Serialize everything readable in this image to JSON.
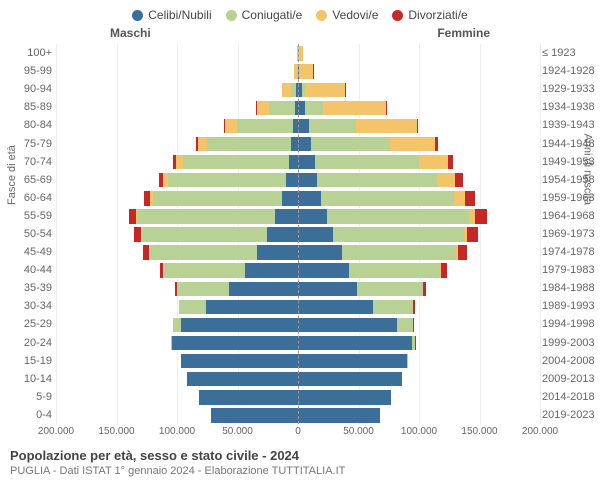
{
  "legend": [
    {
      "label": "Celibi/Nubili",
      "color": "#3b6e99"
    },
    {
      "label": "Coniugati/e",
      "color": "#b8d194"
    },
    {
      "label": "Vedovi/e",
      "color": "#f4c46a"
    },
    {
      "label": "Divorziati/e",
      "color": "#c62828"
    }
  ],
  "side_titles": {
    "left": "Maschi",
    "right": "Femmine"
  },
  "axis_titles": {
    "left": "Fasce di età",
    "right": "Anni di nascita"
  },
  "x_axis": {
    "max": 200000,
    "ticks": [
      200000,
      150000,
      100000,
      50000,
      0,
      50000,
      100000,
      150000,
      200000
    ],
    "tick_labels": [
      "200.000",
      "150.000",
      "100.000",
      "50.000",
      "0",
      "50.000",
      "100.000",
      "150.000",
      "200.000"
    ]
  },
  "colors": {
    "celibi": "#3b6e99",
    "coniugati": "#b8d194",
    "vedovi": "#f4c46a",
    "divorziati": "#c62828",
    "grid": "#eeeeee",
    "center": "#999999",
    "bg": "#ffffff"
  },
  "caption": {
    "title": "Popolazione per età, sesso e stato civile - 2024",
    "sub": "PUGLIA - Dati ISTAT 1° gennaio 2024 - Elaborazione TUTTITALIA.IT"
  },
  "rows": [
    {
      "age": "100+",
      "years": "≤ 1923",
      "m": [
        100,
        100,
        700,
        0
      ],
      "f": [
        300,
        200,
        3500,
        0
      ]
    },
    {
      "age": "95-99",
      "years": "1924-1928",
      "m": [
        400,
        600,
        2500,
        100
      ],
      "f": [
        800,
        500,
        11000,
        100
      ]
    },
    {
      "age": "90-94",
      "years": "1929-1933",
      "m": [
        1500,
        4500,
        7000,
        300
      ],
      "f": [
        3200,
        2600,
        33000,
        400
      ]
    },
    {
      "age": "85-89",
      "years": "1934-1938",
      "m": [
        2800,
        21000,
        10000,
        600
      ],
      "f": [
        6000,
        15000,
        52000,
        900
      ]
    },
    {
      "age": "80-84",
      "years": "1939-1943",
      "m": [
        4200,
        46000,
        10000,
        1100
      ],
      "f": [
        9000,
        39000,
        50000,
        1600
      ]
    },
    {
      "age": "75-79",
      "years": "1944-1948",
      "m": [
        5500,
        70000,
        7500,
        1700
      ],
      "f": [
        11000,
        65000,
        37000,
        2600
      ]
    },
    {
      "age": "70-74",
      "years": "1949-1953",
      "m": [
        7200,
        88000,
        5500,
        2700
      ],
      "f": [
        14000,
        86000,
        24000,
        4200
      ]
    },
    {
      "age": "65-69",
      "years": "1954-1958",
      "m": [
        9500,
        98000,
        3800,
        4000
      ],
      "f": [
        16000,
        99000,
        15000,
        6000
      ]
    },
    {
      "age": "60-64",
      "years": "1959-1963",
      "m": [
        13000,
        107000,
        2500,
        5000
      ],
      "f": [
        19000,
        110000,
        9000,
        8000
      ]
    },
    {
      "age": "55-59",
      "years": "1964-1968",
      "m": [
        19000,
        113000,
        1600,
        6000
      ],
      "f": [
        24000,
        117000,
        5500,
        9500
      ]
    },
    {
      "age": "50-54",
      "years": "1969-1973",
      "m": [
        26000,
        103000,
        900,
        5500
      ],
      "f": [
        29000,
        108000,
        3000,
        9000
      ]
    },
    {
      "age": "45-49",
      "years": "1974-1978",
      "m": [
        34000,
        89000,
        500,
        4500
      ],
      "f": [
        36000,
        95000,
        1600,
        7500
      ]
    },
    {
      "age": "40-44",
      "years": "1979-1983",
      "m": [
        44000,
        67000,
        250,
        3000
      ],
      "f": [
        42000,
        75000,
        800,
        5000
      ]
    },
    {
      "age": "35-39",
      "years": "1984-1988",
      "m": [
        57000,
        43000,
        100,
        1500
      ],
      "f": [
        49000,
        54000,
        350,
        2700
      ]
    },
    {
      "age": "30-34",
      "years": "1989-1993",
      "m": [
        76000,
        22000,
        50,
        600
      ],
      "f": [
        62000,
        33000,
        150,
        1200
      ]
    },
    {
      "age": "25-29",
      "years": "1994-1998",
      "m": [
        97000,
        6500,
        20,
        150
      ],
      "f": [
        82000,
        13000,
        60,
        350
      ]
    },
    {
      "age": "20-24",
      "years": "1999-2003",
      "m": [
        104000,
        900,
        5,
        30
      ],
      "f": [
        94000,
        2800,
        20,
        80
      ]
    },
    {
      "age": "15-19",
      "years": "2004-2008",
      "m": [
        97000,
        40,
        0,
        5
      ],
      "f": [
        90000,
        250,
        5,
        10
      ]
    },
    {
      "age": "10-14",
      "years": "2009-2013",
      "m": [
        92000,
        0,
        0,
        0
      ],
      "f": [
        86000,
        0,
        0,
        0
      ]
    },
    {
      "age": "5-9",
      "years": "2014-2018",
      "m": [
        82000,
        0,
        0,
        0
      ],
      "f": [
        77000,
        0,
        0,
        0
      ]
    },
    {
      "age": "0-4",
      "years": "2019-2023",
      "m": [
        72000,
        0,
        0,
        0
      ],
      "f": [
        68000,
        0,
        0,
        0
      ]
    }
  ]
}
